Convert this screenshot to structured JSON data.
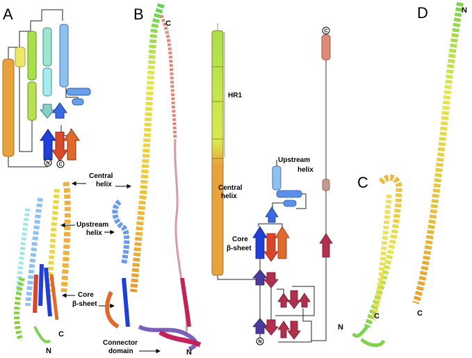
{
  "panels": {
    "a": "A",
    "b": "B",
    "c": "C",
    "d": "D"
  },
  "labels": {
    "central_helix": [
      "Central",
      "helix"
    ],
    "upstream_helix": [
      "Upstream",
      "helix"
    ],
    "core_sheet": [
      "Core",
      "β-sheet"
    ],
    "connector": [
      "Connector",
      "domain"
    ],
    "hr1": "HR1",
    "topo_upstream": [
      "Upstream",
      "helix"
    ],
    "topo_central": [
      "Central",
      "helix"
    ],
    "topo_core": [
      "Core",
      "β-sheet"
    ]
  },
  "termini": {
    "n": "N",
    "c": "C",
    "n_circle": "N",
    "c_circle": "C"
  },
  "colors": {
    "orange": "#e8a33c",
    "gold": "#f0b93a",
    "yellow": "#e3e850",
    "lime": "#a8e04a",
    "green": "#7dd34c",
    "cyan": "#8fe6e8",
    "sky": "#8ec8f0",
    "blue": "#5b8fe8",
    "darkblue": "#1f3fd6",
    "red": "#d8452a",
    "orangered": "#e06a2c",
    "salmon": "#e08a78",
    "pink": "#d89aa0",
    "magenta": "#c0245a",
    "maroon": "#b03050",
    "indigo": "#5a4c9a"
  }
}
